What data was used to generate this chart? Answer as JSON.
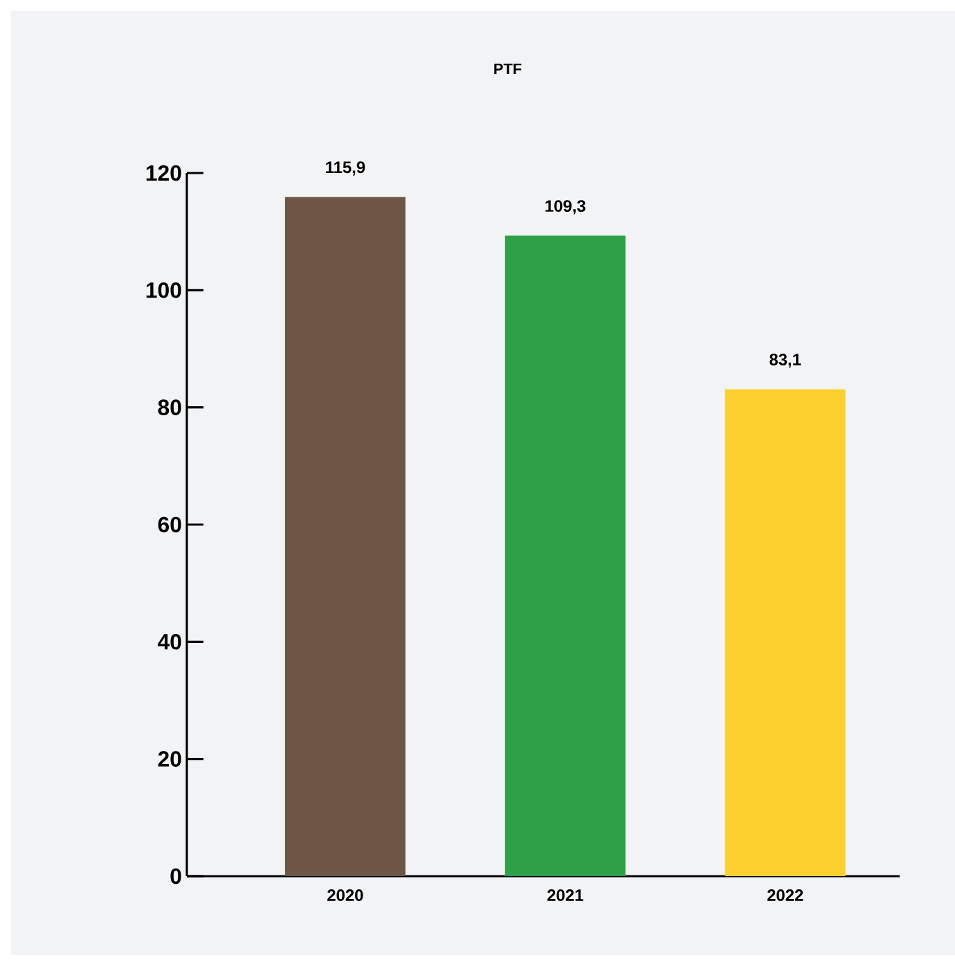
{
  "chart_data": {
    "type": "bar",
    "title": "PTF",
    "categories": [
      "2020",
      "2021",
      "2022"
    ],
    "values": [
      115.9,
      109.3,
      83.1
    ],
    "colors": [
      "#6e5646",
      "#2ea048",
      "#fdd030"
    ],
    "value_labels": [
      "115,9",
      "109,3",
      "83,1"
    ],
    "ylim": [
      0,
      120
    ],
    "yticks": [
      0,
      20,
      40,
      60,
      80,
      100,
      120
    ]
  }
}
